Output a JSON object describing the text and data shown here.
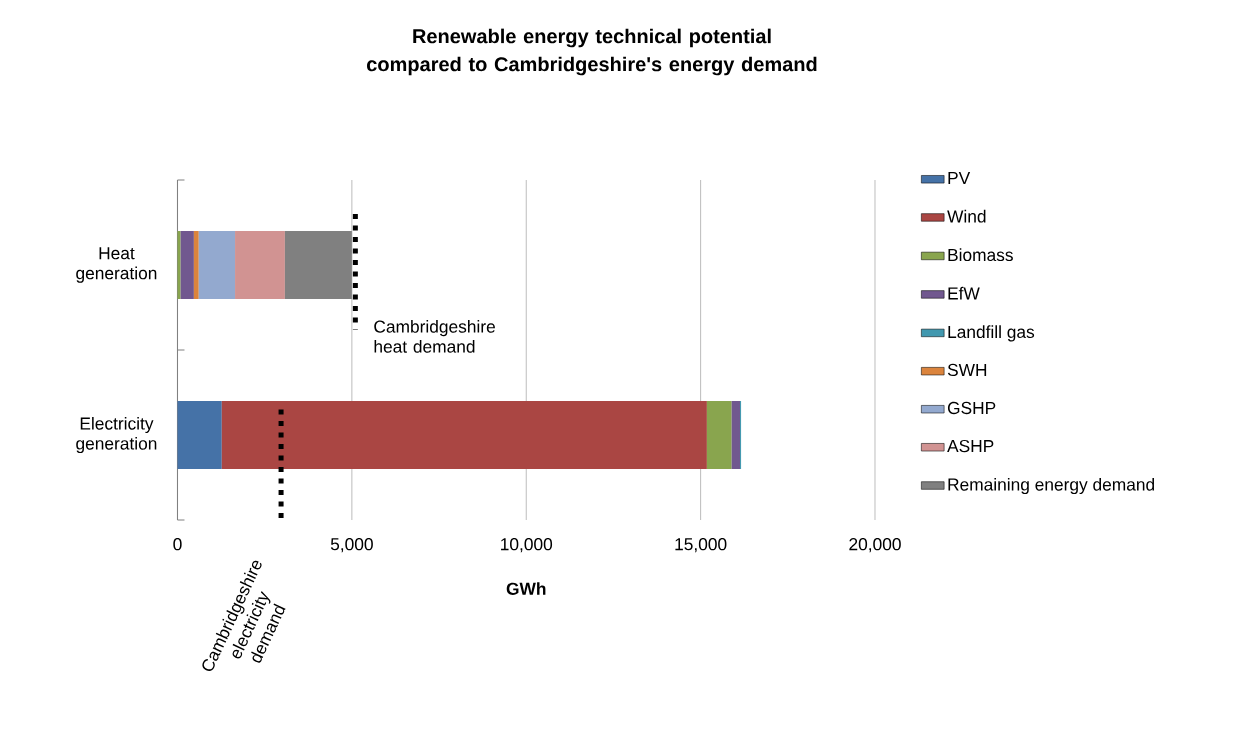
{
  "chart_data": {
    "type": "bar",
    "orientation": "horizontal",
    "stacked": true,
    "title": "Renewable energy technical potential compared to Cambridgeshire's energy demand",
    "xlabel": "GWh",
    "categories": [
      "Heat generation",
      "Electricity generation"
    ],
    "series": [
      {
        "name": "PV",
        "color": "#4572a7",
        "values": [
          null,
          1270
        ]
      },
      {
        "name": "Wind",
        "color": "#aa4643",
        "values": [
          null,
          13910
        ]
      },
      {
        "name": "Biomass",
        "color": "#89a54e",
        "values": [
          90,
          710
        ]
      },
      {
        "name": "EfW",
        "color": "#71588f",
        "values": [
          380,
          240
        ]
      },
      {
        "name": "Landfill gas",
        "color": "#4198af",
        "values": [
          null,
          30
        ]
      },
      {
        "name": "SWH",
        "color": "#db843d",
        "values": [
          140,
          null
        ]
      },
      {
        "name": "GSHP",
        "color": "#93a9cf",
        "values": [
          1040,
          null
        ]
      },
      {
        "name": "ASHP",
        "color": "#d19392",
        "values": [
          1430,
          null
        ]
      },
      {
        "name": "Remaining energy demand",
        "color": "#808080",
        "values": [
          1920,
          null
        ]
      }
    ],
    "xlim": [
      0,
      20000
    ],
    "xticks": [
      0,
      {
        "value": 5000,
        "label": "5,000"
      },
      {
        "value": 10000,
        "label": "10,000"
      },
      {
        "value": 15000,
        "label": "15,000"
      },
      {
        "value": 20000,
        "label": "20,000"
      }
    ],
    "grid": "x",
    "legend": "right",
    "ref_lines": [
      {
        "axis": "x",
        "value": 5100,
        "label": "Cambridgeshire heat demand",
        "color": "#000000",
        "line_style": "dotted"
      },
      {
        "axis": "x",
        "value": 2970,
        "label": "Cambridgeshire electricity demand",
        "color": "#000000",
        "line_style": "dotted"
      }
    ]
  }
}
